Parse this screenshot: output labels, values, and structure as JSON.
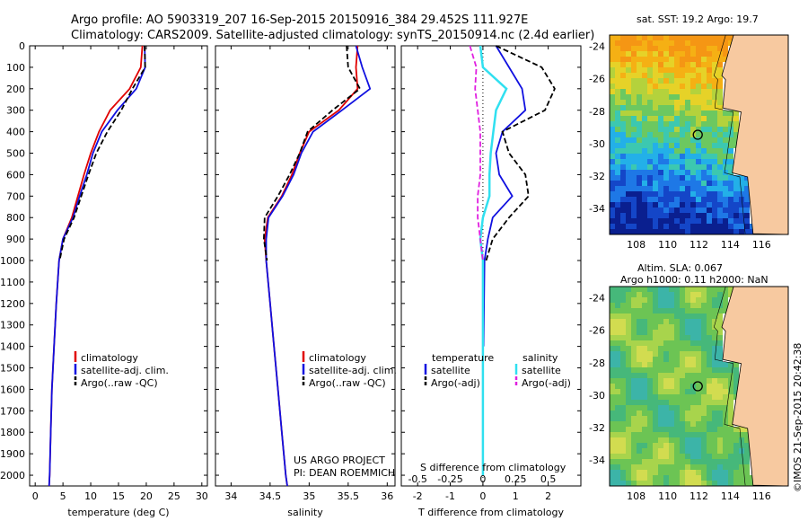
{
  "header": {
    "line1": "Argo profile: AO 5903319_207 16-Sep-2015 20150916_384 29.452S 111.927E",
    "line2": "Climatology: CARS2009. Satellite-adjusted climatology: synTS_20150914.nc (2.4d earlier)"
  },
  "side_credit": "©IMOS 21-Sep-2015 20:42:38",
  "colors": {
    "climatology": "#e00000",
    "satellite": "#1010e0",
    "argo": "#000000",
    "sat_salinity": "#30e0f0",
    "argo_salinity": "#e020e0",
    "land": "#f7c9a0"
  },
  "depth_ticks": [
    0,
    100,
    200,
    300,
    400,
    500,
    600,
    700,
    800,
    900,
    1000,
    1100,
    1200,
    1300,
    1400,
    1500,
    1600,
    1700,
    1800,
    1900,
    2000
  ],
  "temperature_panel": {
    "xlabel": "temperature (deg C)",
    "xticks": [
      "0",
      "5",
      "10",
      "15",
      "20",
      "25",
      "30"
    ],
    "legend": [
      "climatology",
      "satellite-adj. clim.",
      "Argo(..raw -QC)"
    ]
  },
  "salinity_panel": {
    "xlabel": "salinity",
    "xticks": [
      "34",
      "34.5",
      "35",
      "35.5",
      "36"
    ],
    "legend": [
      "climatology",
      "satellite-adj. clim.",
      "Argo(..raw -QC)"
    ],
    "credit1": "US ARGO PROJECT",
    "credit2": "PI: DEAN ROEMMICH"
  },
  "difference_panel": {
    "top_xlabel": "S difference from climatology",
    "top_xticks": [
      "-0.5",
      "-0.25",
      "0",
      "0.25",
      "0.5"
    ],
    "xlabel": "T difference from climatology",
    "xticks": [
      "-2",
      "-1",
      "0",
      "1",
      "2"
    ],
    "legend_head_t": "temperature",
    "legend_head_s": "salinity",
    "legend_t": [
      "satellite",
      "Argo(-adj)"
    ],
    "legend_s": [
      "satellite",
      "Argo(-adj)"
    ]
  },
  "sst_map": {
    "title": "sat. SST: 19.2  Argo: 19.7",
    "lat_ticks": [
      "-24",
      "-26",
      "-28",
      "-30",
      "-32",
      "-34"
    ],
    "lon_ticks": [
      "108",
      "110",
      "112",
      "114",
      "116"
    ]
  },
  "sla_map": {
    "title1": "Altim. SLA: 0.067",
    "title2": "Argo h1000: 0.11  h2000: NaN",
    "lat_ticks": [
      "-24",
      "-26",
      "-28",
      "-30",
      "-32",
      "-34"
    ],
    "lon_ticks": [
      "108",
      "110",
      "112",
      "114",
      "116"
    ]
  },
  "chart_data": [
    {
      "type": "line",
      "title": "",
      "xlabel": "temperature (deg C)",
      "ylabel": "",
      "xlim": [
        -1,
        31
      ],
      "ylim": [
        2050,
        0
      ],
      "series": [
        {
          "name": "climatology",
          "x": [
            19.3,
            19.0,
            17.0,
            13.5,
            11.5,
            10.0,
            8.8,
            7.7,
            6.6,
            5.0,
            4.3,
            3.8,
            3.4,
            3.0,
            2.8,
            2.6,
            2.5
          ],
          "y": [
            0,
            100,
            200,
            300,
            400,
            500,
            600,
            700,
            800,
            900,
            1000,
            1200,
            1400,
            1600,
            1800,
            2000,
            2050
          ]
        },
        {
          "name": "satellite-adj. clim.",
          "x": [
            19.7,
            19.8,
            18.2,
            14.8,
            12.0,
            10.4,
            9.3,
            8.0,
            6.8,
            5.0,
            4.3,
            3.8,
            3.4,
            3.0,
            2.8,
            2.6,
            2.5
          ],
          "y": [
            0,
            100,
            200,
            300,
            400,
            500,
            600,
            700,
            800,
            900,
            1000,
            1200,
            1400,
            1600,
            1800,
            2000,
            2050
          ]
        },
        {
          "name": "Argo(..raw -QC)",
          "x": [
            19.7,
            19.8,
            17.5,
            15.5,
            13.0,
            11.0,
            9.6,
            8.3,
            7.0,
            5.2,
            4.4
          ],
          "y": [
            0,
            100,
            200,
            300,
            400,
            500,
            600,
            700,
            800,
            900,
            1000
          ]
        }
      ]
    },
    {
      "type": "line",
      "title": "",
      "xlabel": "salinity",
      "ylabel": "",
      "xlim": [
        33.8,
        36.1
      ],
      "ylim": [
        2050,
        0
      ],
      "series": [
        {
          "name": "climatology",
          "x": [
            35.62,
            35.6,
            35.62,
            35.38,
            35.0,
            34.88,
            34.78,
            34.65,
            34.47,
            34.43,
            34.45,
            34.5,
            34.55,
            34.6,
            34.65,
            34.7,
            34.72
          ],
          "y": [
            0,
            100,
            200,
            300,
            400,
            500,
            600,
            700,
            800,
            900,
            1000,
            1200,
            1400,
            1600,
            1800,
            2000,
            2050
          ]
        },
        {
          "name": "satellite-adj. clim.",
          "x": [
            35.6,
            35.68,
            35.78,
            35.42,
            35.05,
            34.9,
            34.8,
            34.66,
            34.48,
            34.45,
            34.45,
            34.5,
            34.55,
            34.6,
            34.65,
            34.7,
            34.72
          ],
          "y": [
            0,
            100,
            200,
            300,
            400,
            500,
            600,
            700,
            800,
            900,
            1000,
            1200,
            1400,
            1600,
            1800,
            2000,
            2050
          ]
        },
        {
          "name": "Argo(..raw -QC)",
          "x": [
            35.48,
            35.5,
            35.65,
            35.3,
            34.98,
            34.88,
            34.75,
            34.6,
            34.43,
            34.42,
            34.46
          ],
          "y": [
            0,
            100,
            200,
            300,
            400,
            500,
            600,
            700,
            800,
            900,
            1000
          ]
        }
      ]
    },
    {
      "type": "line",
      "title": "",
      "xlabel": "T difference from climatology",
      "ylabel": "",
      "xlim": [
        -2.5,
        3
      ],
      "ylim": [
        2050,
        0
      ],
      "top_xlabel": "S difference from climatology",
      "top_xlim": [
        -0.625,
        0.75
      ],
      "series": [
        {
          "name": "satellite",
          "x": [
            0.4,
            0.8,
            1.2,
            1.3,
            0.6,
            0.4,
            0.5,
            0.9,
            0.3,
            0.15,
            0.05,
            0.02
          ],
          "y": [
            0,
            100,
            200,
            300,
            400,
            500,
            600,
            700,
            800,
            900,
            1000,
            1400
          ]
        },
        {
          "name": "Argo(-adj)",
          "x": [
            0.4,
            1.8,
            2.2,
            1.9,
            0.6,
            0.8,
            1.3,
            1.4,
            0.8,
            0.3,
            0.1
          ],
          "y": [
            0,
            100,
            200,
            300,
            400,
            500,
            600,
            700,
            800,
            900,
            1000
          ]
        },
        {
          "name": "satellite",
          "x": [
            -0.02,
            0.0,
            0.18,
            0.1,
            0.08,
            0.06,
            0.05,
            0.05,
            0.0,
            -0.02,
            0.0,
            0.0,
            0.0,
            0.0
          ],
          "y": [
            0,
            100,
            200,
            300,
            400,
            500,
            600,
            700,
            800,
            900,
            1000,
            1400,
            1800,
            2000
          ]
        },
        {
          "name": "Argo(-adj)",
          "x": [
            -0.1,
            -0.05,
            -0.06,
            -0.04,
            -0.02,
            -0.02,
            -0.02,
            -0.04,
            -0.04,
            -0.02,
            0.0
          ],
          "y": [
            0,
            100,
            200,
            300,
            400,
            500,
            600,
            700,
            800,
            900,
            1000
          ]
        }
      ]
    }
  ]
}
